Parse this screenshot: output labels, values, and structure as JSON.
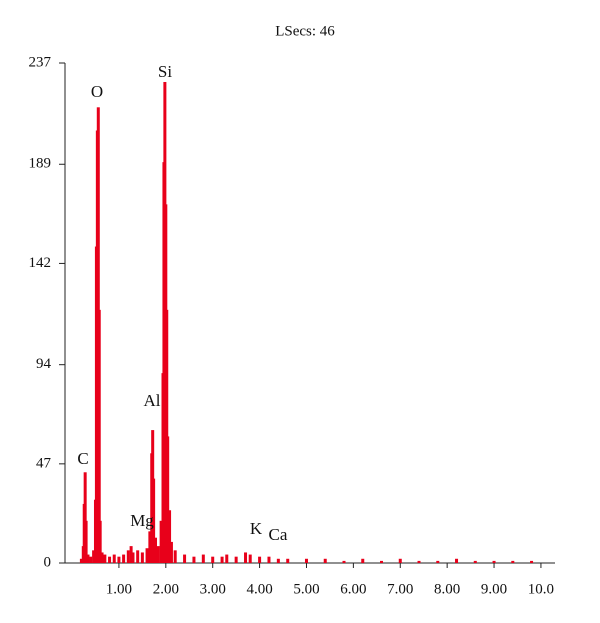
{
  "chart_data": {
    "type": "bar",
    "title": "LSecs: 46",
    "color": "#e8001a",
    "x": [
      0.2,
      0.24,
      0.26,
      0.28,
      0.3,
      0.34,
      0.4,
      0.46,
      0.5,
      0.52,
      0.54,
      0.56,
      0.58,
      0.6,
      0.64,
      0.7,
      0.8,
      0.9,
      1.0,
      1.1,
      1.2,
      1.26,
      1.3,
      1.4,
      1.5,
      1.6,
      1.66,
      1.7,
      1.72,
      1.74,
      1.78,
      1.84,
      1.9,
      1.94,
      1.96,
      1.98,
      2.0,
      2.02,
      2.04,
      2.08,
      2.12,
      2.2,
      2.4,
      2.6,
      2.8,
      3.0,
      3.2,
      3.3,
      3.5,
      3.7,
      3.8,
      4.0,
      4.2,
      4.4,
      4.6,
      5.0,
      5.4,
      5.8,
      6.2,
      6.6,
      7.0,
      7.4,
      7.8,
      8.2,
      8.6,
      9.0,
      9.4,
      9.8
    ],
    "values": [
      2,
      8,
      28,
      43,
      20,
      4,
      3,
      6,
      30,
      150,
      205,
      216,
      120,
      20,
      5,
      4,
      3,
      4,
      3,
      4,
      6,
      8,
      5,
      6,
      5,
      7,
      15,
      52,
      63,
      40,
      12,
      8,
      20,
      90,
      190,
      228,
      170,
      120,
      60,
      25,
      10,
      6,
      4,
      3,
      4,
      3,
      3,
      4,
      3,
      5,
      4,
      3,
      3,
      2,
      2,
      2,
      2,
      1,
      2,
      1,
      2,
      1,
      1,
      2,
      1,
      1,
      1,
      1
    ],
    "annotations": [
      "C",
      "O",
      "Mg",
      "Al",
      "Si",
      "K",
      "Ca"
    ],
    "xlim": [
      -0.15,
      10.3
    ],
    "xticks": [
      {
        "value": 1,
        "label": "1.00"
      },
      {
        "value": 2,
        "label": "2.00"
      },
      {
        "value": 3,
        "label": "3.00"
      },
      {
        "value": 4,
        "label": "4.00"
      },
      {
        "value": 5,
        "label": "5.00"
      },
      {
        "value": 6,
        "label": "6.00"
      },
      {
        "value": 7,
        "label": "7.00"
      },
      {
        "value": 8,
        "label": "8.00"
      },
      {
        "value": 9,
        "label": "9.00"
      },
      {
        "value": 10,
        "label": "10.0"
      }
    ],
    "ylim": [
      0,
      237
    ],
    "yticks": [
      0,
      47,
      94,
      142,
      189,
      237
    ],
    "grid": false
  }
}
